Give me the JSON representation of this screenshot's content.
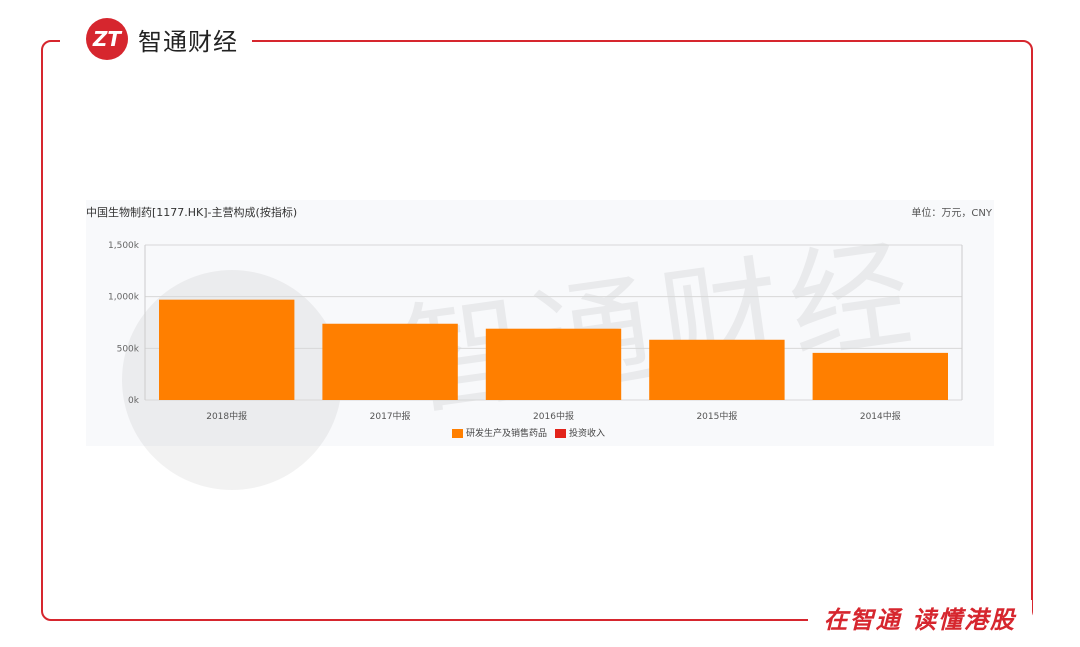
{
  "brand": {
    "logo_text": "智通财经",
    "logo_mark": "ZT",
    "slogan": "在智通  读懂港股"
  },
  "chart_data": {
    "type": "bar",
    "title": "中国生物制药[1177.HK]-主营构成(按指标)",
    "unit": "单位：万元，CNY",
    "categories": [
      "2018中报",
      "2017中报",
      "2016中报",
      "2015中报",
      "2014中报"
    ],
    "series": [
      {
        "name": "研发生产及销售药品",
        "color": "#ff7f00",
        "values": [
          971000,
          738000,
          690000,
          583000,
          456000
        ]
      },
      {
        "name": "投资收入",
        "color": "#e2231a",
        "values": [
          0,
          0,
          0,
          0,
          0
        ]
      }
    ],
    "ylim": [
      0,
      1500000
    ],
    "yticks": [
      "0k",
      "500k",
      "1,000k",
      "1,500k"
    ],
    "grid": true,
    "legend": "bottom"
  }
}
